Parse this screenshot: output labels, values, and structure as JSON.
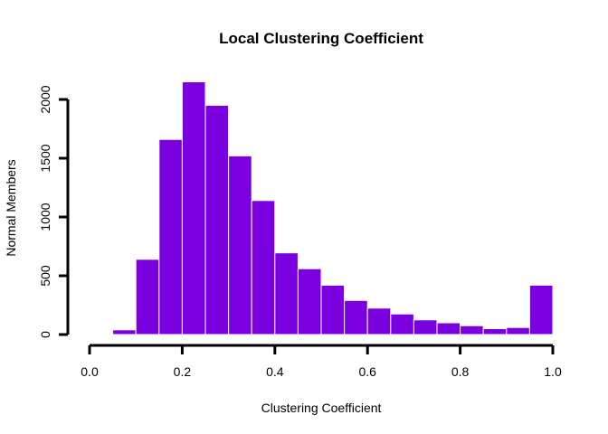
{
  "chart_data": {
    "type": "bar",
    "title": "Local Clustering Coefficient",
    "xlabel": "Clustering Coefficient",
    "ylabel": "Normal Members",
    "xlim": [
      0.0,
      1.0
    ],
    "ylim": [
      0,
      2000
    ],
    "x_ticks": [
      "0.0",
      "0.2",
      "0.4",
      "0.6",
      "0.8",
      "1.0"
    ],
    "y_ticks": [
      "0",
      "500",
      "1000",
      "1500",
      "2000"
    ],
    "bar_color": "#7a00e0",
    "bins": [
      {
        "start": 0.05,
        "end": 0.1,
        "value": 40
      },
      {
        "start": 0.1,
        "end": 0.15,
        "value": 640
      },
      {
        "start": 0.15,
        "end": 0.2,
        "value": 1660
      },
      {
        "start": 0.2,
        "end": 0.25,
        "value": 2150
      },
      {
        "start": 0.25,
        "end": 0.3,
        "value": 1950
      },
      {
        "start": 0.3,
        "end": 0.35,
        "value": 1520
      },
      {
        "start": 0.35,
        "end": 0.4,
        "value": 1140
      },
      {
        "start": 0.4,
        "end": 0.45,
        "value": 695
      },
      {
        "start": 0.45,
        "end": 0.5,
        "value": 560
      },
      {
        "start": 0.5,
        "end": 0.55,
        "value": 420
      },
      {
        "start": 0.55,
        "end": 0.6,
        "value": 290
      },
      {
        "start": 0.6,
        "end": 0.65,
        "value": 225
      },
      {
        "start": 0.65,
        "end": 0.7,
        "value": 175
      },
      {
        "start": 0.7,
        "end": 0.75,
        "value": 125
      },
      {
        "start": 0.75,
        "end": 0.8,
        "value": 100
      },
      {
        "start": 0.8,
        "end": 0.85,
        "value": 75
      },
      {
        "start": 0.85,
        "end": 0.9,
        "value": 50
      },
      {
        "start": 0.9,
        "end": 0.95,
        "value": 60
      },
      {
        "start": 0.95,
        "end": 1.0,
        "value": 420
      }
    ]
  }
}
